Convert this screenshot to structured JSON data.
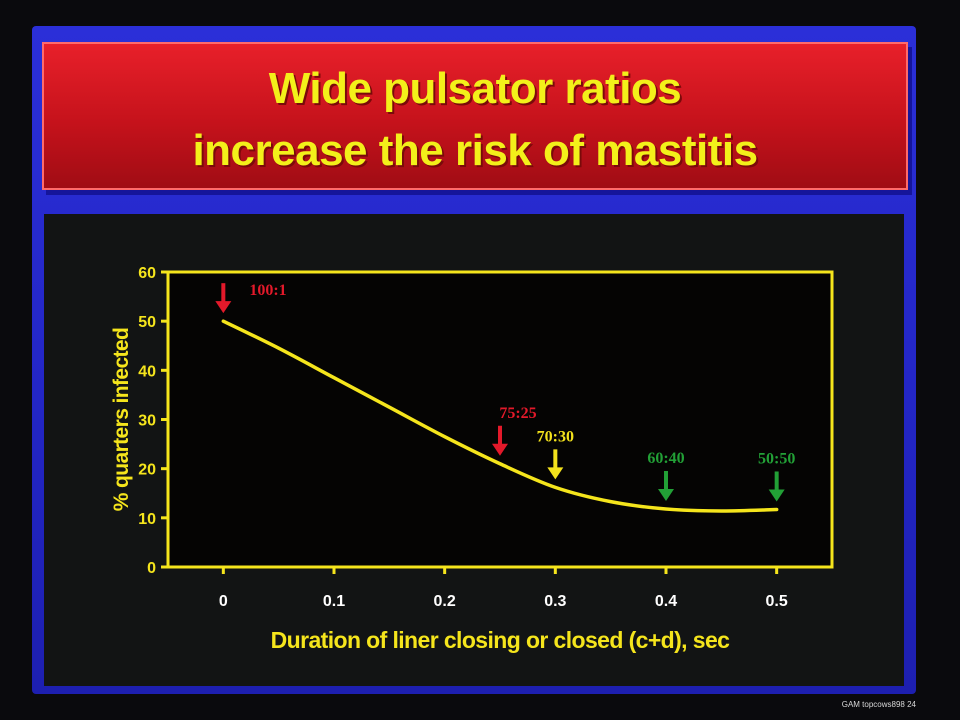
{
  "slide": {
    "title_line1": "Wide pulsator ratios",
    "title_line2": "increase the risk of mastitis",
    "footer": "GAM topcows898   24"
  },
  "colors": {
    "background": "#2326c6",
    "title_box": "#d3161f",
    "title_text": "#f3f01a",
    "plot_bg": "#050403",
    "axis": "#f5e51c",
    "curve": "#f5e51c",
    "red_marker": "#e3192a",
    "yellow_marker": "#f3e21c",
    "green_marker": "#22a036"
  },
  "chart_data": {
    "type": "line",
    "title": "Wide pulsator ratios increase the risk of mastitis",
    "xlabel": "Duration of liner closing or closed (c+d), sec",
    "ylabel": "% quarters infected",
    "xlim": [
      -0.05,
      0.55
    ],
    "ylim": [
      0,
      60
    ],
    "xticks": [
      0,
      0.1,
      0.2,
      0.3,
      0.4,
      0.5
    ],
    "xtick_labels": [
      "0",
      "0.1",
      "0.2",
      "0.3",
      "0.4",
      "0.5"
    ],
    "yticks": [
      0,
      10,
      20,
      30,
      40,
      50,
      60
    ],
    "ytick_labels": [
      "0",
      "10",
      "20",
      "30",
      "40",
      "50",
      "60"
    ],
    "grid": false,
    "series": [
      {
        "name": "",
        "x": [
          0,
          0.05,
          0.1,
          0.15,
          0.2,
          0.25,
          0.3,
          0.35,
          0.4,
          0.45,
          0.5
        ],
        "y": [
          50,
          44.5,
          38.5,
          32.5,
          26.5,
          21,
          16.2,
          13.3,
          11.8,
          11.4,
          11.7
        ]
      }
    ],
    "annotations": [
      {
        "label": "100:1",
        "x": 0,
        "y": 50,
        "color": "red"
      },
      {
        "label": "75:25",
        "x": 0.25,
        "y": 21,
        "color": "red"
      },
      {
        "label": "70:30",
        "x": 0.3,
        "y": 16.2,
        "color": "yellow"
      },
      {
        "label": "60:40",
        "x": 0.4,
        "y": 11.8,
        "color": "green"
      },
      {
        "label": "50:50",
        "x": 0.5,
        "y": 11.7,
        "color": "green"
      }
    ]
  }
}
